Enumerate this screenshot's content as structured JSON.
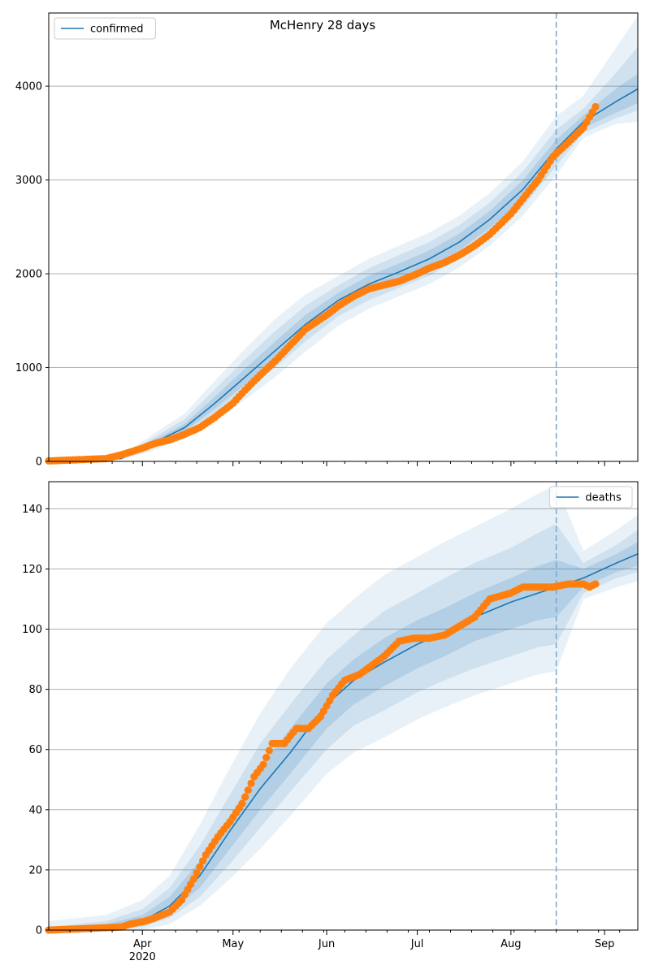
{
  "figure": {
    "title": "McHenry 28 days"
  },
  "chart_data": [
    {
      "type": "line",
      "name": "confirmed-panel",
      "legend": {
        "label": "confirmed",
        "position": "top-left"
      },
      "ylim": [
        0,
        4780
      ],
      "yticks": [
        0,
        1000,
        2000,
        3000,
        4000
      ],
      "grid": "y",
      "forecast_start": "2020-08-16",
      "x_start": "2020-03-01",
      "x_end": "2020-09-12",
      "model": {
        "x": [
          "2020-03-01",
          "2020-03-15",
          "2020-03-25",
          "2020-04-05",
          "2020-04-15",
          "2020-04-25",
          "2020-05-05",
          "2020-05-15",
          "2020-05-25",
          "2020-06-05",
          "2020-06-15",
          "2020-06-25",
          "2020-07-05",
          "2020-07-15",
          "2020-07-25",
          "2020-08-05",
          "2020-08-16",
          "2020-08-25",
          "2020-09-05",
          "2020-09-12"
        ],
        "median": [
          10,
          12,
          30,
          200,
          360,
          620,
          900,
          1180,
          1460,
          1720,
          1890,
          2020,
          2160,
          2340,
          2580,
          2900,
          3330,
          3620,
          3840,
          3970
        ],
        "band_inner": [
          [
            10,
            10
          ],
          [
            10,
            14
          ],
          [
            25,
            40
          ],
          [
            170,
            230
          ],
          [
            320,
            400
          ],
          [
            560,
            690
          ],
          [
            820,
            990
          ],
          [
            1090,
            1280
          ],
          [
            1370,
            1560
          ],
          [
            1640,
            1800
          ],
          [
            1810,
            1980
          ],
          [
            1930,
            2110
          ],
          [
            2070,
            2250
          ],
          [
            2250,
            2430
          ],
          [
            2490,
            2670
          ],
          [
            2800,
            3000
          ],
          [
            3230,
            3430
          ],
          [
            3550,
            3690
          ],
          [
            3720,
            3980
          ],
          [
            3820,
            4130
          ]
        ],
        "band_mid": [
          [
            8,
            12
          ],
          [
            6,
            18
          ],
          [
            20,
            50
          ],
          [
            150,
            260
          ],
          [
            280,
            450
          ],
          [
            500,
            770
          ],
          [
            740,
            1090
          ],
          [
            1000,
            1390
          ],
          [
            1280,
            1660
          ],
          [
            1550,
            1880
          ],
          [
            1720,
            2060
          ],
          [
            1850,
            2200
          ],
          [
            1980,
            2340
          ],
          [
            2160,
            2520
          ],
          [
            2390,
            2760
          ],
          [
            2710,
            3090
          ],
          [
            3150,
            3540
          ],
          [
            3500,
            3760
          ],
          [
            3660,
            4150
          ],
          [
            3740,
            4420
          ]
        ],
        "band_outer": [
          [
            5,
            15
          ],
          [
            2,
            25
          ],
          [
            15,
            65
          ],
          [
            120,
            300
          ],
          [
            240,
            510
          ],
          [
            440,
            860
          ],
          [
            660,
            1200
          ],
          [
            900,
            1520
          ],
          [
            1170,
            1780
          ],
          [
            1450,
            1980
          ],
          [
            1630,
            2160
          ],
          [
            1760,
            2300
          ],
          [
            1890,
            2440
          ],
          [
            2070,
            2620
          ],
          [
            2300,
            2860
          ],
          [
            2620,
            3200
          ],
          [
            3050,
            3680
          ],
          [
            3450,
            3900
          ],
          [
            3600,
            4420
          ],
          [
            3620,
            4750
          ]
        ]
      },
      "observed": {
        "x": [
          "2020-03-01",
          "2020-03-20",
          "2020-03-25",
          "2020-03-28",
          "2020-04-01",
          "2020-04-05",
          "2020-04-10",
          "2020-04-15",
          "2020-04-20",
          "2020-04-25",
          "2020-05-01",
          "2020-05-05",
          "2020-05-10",
          "2020-05-15",
          "2020-05-20",
          "2020-05-25",
          "2020-06-01",
          "2020-06-05",
          "2020-06-10",
          "2020-06-15",
          "2020-06-20",
          "2020-06-25",
          "2020-07-01",
          "2020-07-05",
          "2020-07-10",
          "2020-07-15",
          "2020-07-20",
          "2020-07-25",
          "2020-08-01",
          "2020-08-05",
          "2020-08-10",
          "2020-08-15",
          "2020-08-20",
          "2020-08-25",
          "2020-08-29"
        ],
        "values": [
          5,
          30,
          70,
          100,
          140,
          190,
          230,
          290,
          360,
          470,
          620,
          760,
          920,
          1070,
          1240,
          1410,
          1560,
          1660,
          1760,
          1840,
          1880,
          1920,
          2000,
          2060,
          2120,
          2200,
          2300,
          2420,
          2640,
          2800,
          3000,
          3250,
          3400,
          3560,
          3780
        ]
      }
    },
    {
      "type": "line",
      "name": "deaths-panel",
      "legend": {
        "label": "deaths",
        "position": "top-right"
      },
      "ylim": [
        0,
        149
      ],
      "yticks": [
        0,
        20,
        40,
        60,
        80,
        100,
        120,
        140
      ],
      "grid": "y",
      "forecast_start": "2020-08-16",
      "x_start": "2020-03-01",
      "x_end": "2020-09-12",
      "xticks": [
        "Apr",
        "May",
        "Jun",
        "Jul",
        "Aug",
        "Sep"
      ],
      "xtick_dates": [
        "2020-04-01",
        "2020-05-01",
        "2020-06-01",
        "2020-07-01",
        "2020-08-01",
        "2020-09-01"
      ],
      "year_label": "2020",
      "model": {
        "x": [
          "2020-03-01",
          "2020-03-20",
          "2020-04-01",
          "2020-04-10",
          "2020-04-20",
          "2020-04-30",
          "2020-05-10",
          "2020-05-20",
          "2020-06-01",
          "2020-06-10",
          "2020-06-20",
          "2020-07-01",
          "2020-07-10",
          "2020-07-20",
          "2020-08-01",
          "2020-08-10",
          "2020-08-16",
          "2020-08-25",
          "2020-09-05",
          "2020-09-12"
        ],
        "median": [
          0,
          1,
          3,
          8,
          18,
          33,
          47,
          59,
          75,
          83,
          89,
          95,
          99,
          104,
          109,
          112,
          114,
          117,
          122,
          125
        ],
        "band_inner": [
          [
            0,
            0.5
          ],
          [
            0.5,
            2
          ],
          [
            2,
            5
          ],
          [
            6,
            11
          ],
          [
            14,
            23
          ],
          [
            27,
            38
          ],
          [
            40,
            54
          ],
          [
            52,
            67
          ],
          [
            67,
            82
          ],
          [
            75,
            90
          ],
          [
            81,
            97
          ],
          [
            87,
            103
          ],
          [
            91,
            107
          ],
          [
            96,
            112
          ],
          [
            100,
            117
          ],
          [
            103,
            121
          ],
          [
            104,
            123
          ],
          [
            114,
            120
          ],
          [
            119,
            125
          ],
          [
            121,
            129
          ]
        ],
        "band_mid": [
          [
            0,
            1
          ],
          [
            0,
            3
          ],
          [
            1,
            7
          ],
          [
            4,
            14
          ],
          [
            11,
            28
          ],
          [
            22,
            45
          ],
          [
            34,
            62
          ],
          [
            46,
            75
          ],
          [
            60,
            90
          ],
          [
            68,
            98
          ],
          [
            73,
            106
          ],
          [
            79,
            112
          ],
          [
            83,
            117
          ],
          [
            87,
            122
          ],
          [
            91,
            127
          ],
          [
            94,
            132
          ],
          [
            95,
            135
          ],
          [
            112,
            122
          ],
          [
            117,
            128
          ],
          [
            119,
            133
          ]
        ],
        "band_outer": [
          [
            0,
            3
          ],
          [
            0,
            5
          ],
          [
            0,
            10
          ],
          [
            2,
            18
          ],
          [
            8,
            35
          ],
          [
            17,
            54
          ],
          [
            27,
            72
          ],
          [
            38,
            87
          ],
          [
            52,
            102
          ],
          [
            59,
            110
          ],
          [
            64,
            118
          ],
          [
            70,
            124
          ],
          [
            74,
            129
          ],
          [
            78,
            134
          ],
          [
            82,
            140
          ],
          [
            85,
            145
          ],
          [
            86,
            148
          ],
          [
            110,
            126
          ],
          [
            114,
            133
          ],
          [
            116,
            138
          ]
        ]
      },
      "observed": {
        "x": [
          "2020-03-01",
          "2020-03-25",
          "2020-03-28",
          "2020-04-02",
          "2020-04-05",
          "2020-04-10",
          "2020-04-14",
          "2020-04-18",
          "2020-04-22",
          "2020-04-26",
          "2020-04-30",
          "2020-05-04",
          "2020-05-08",
          "2020-05-11",
          "2020-05-14",
          "2020-05-18",
          "2020-05-22",
          "2020-05-26",
          "2020-05-30",
          "2020-06-03",
          "2020-06-07",
          "2020-06-12",
          "2020-06-16",
          "2020-06-20",
          "2020-06-25",
          "2020-06-30",
          "2020-07-05",
          "2020-07-10",
          "2020-07-15",
          "2020-07-20",
          "2020-07-25",
          "2020-08-01",
          "2020-08-05",
          "2020-08-10",
          "2020-08-15",
          "2020-08-20",
          "2020-08-25",
          "2020-08-27",
          "2020-08-29"
        ],
        "values": [
          0,
          1,
          2,
          3,
          4,
          6,
          10,
          17,
          25,
          31,
          36,
          42,
          51,
          55,
          62,
          62,
          67,
          67,
          71,
          78,
          83,
          85,
          88,
          91,
          96,
          97,
          97,
          98,
          101,
          104,
          110,
          112,
          114,
          114,
          114,
          115,
          115,
          114,
          115
        ]
      }
    }
  ],
  "colors": {
    "model_line": "#1f77b4",
    "band": "#1f77b4",
    "observed": "#ff7f0e",
    "grid": "#b0b0b0",
    "vline": "#7fa9d0"
  }
}
